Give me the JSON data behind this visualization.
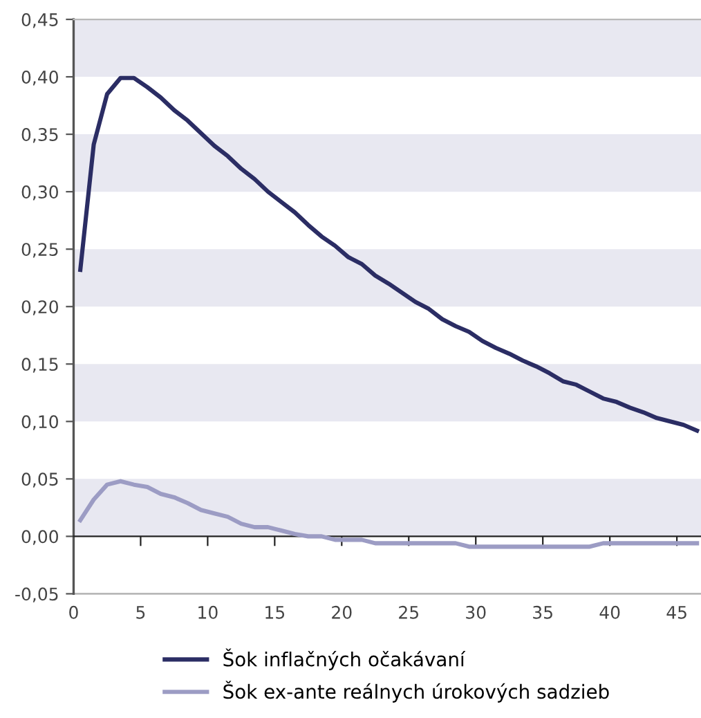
{
  "chart_data": {
    "type": "line",
    "x": [
      0.5,
      1.5,
      2.5,
      3.5,
      4.5,
      5.5,
      6.5,
      7.5,
      8.5,
      9.5,
      10.5,
      11.5,
      12.5,
      13.5,
      14.5,
      15.5,
      16.5,
      17.5,
      18.5,
      19.5,
      20.5,
      21.5,
      22.5,
      23.5,
      24.5,
      25.5,
      26.5,
      27.5,
      28.5,
      29.5,
      30.5,
      31.5,
      32.5,
      33.5,
      34.5,
      35.5,
      36.5,
      37.5,
      38.5,
      39.5,
      40.5,
      41.5,
      42.5,
      43.5,
      44.5,
      45.5,
      46.5
    ],
    "series": [
      {
        "name": "Šok inflačných očakávaní",
        "color": "#2b2d64",
        "values": [
          0.232,
          0.341,
          0.385,
          0.399,
          0.399,
          0.391,
          0.382,
          0.371,
          0.362,
          0.351,
          0.34,
          0.331,
          0.32,
          0.311,
          0.3,
          0.291,
          0.282,
          0.271,
          0.261,
          0.253,
          0.243,
          0.237,
          0.227,
          0.22,
          0.212,
          0.204,
          0.198,
          0.189,
          0.183,
          0.178,
          0.17,
          0.164,
          0.159,
          0.153,
          0.148,
          0.142,
          0.135,
          0.132,
          0.126,
          0.12,
          0.117,
          0.112,
          0.108,
          0.103,
          0.1,
          0.097,
          0.092
        ]
      },
      {
        "name": "Šok ex-ante reálnych úrokových sadzieb",
        "color": "#9c9cc4",
        "values": [
          0.014,
          0.032,
          0.045,
          0.048,
          0.045,
          0.043,
          0.037,
          0.034,
          0.029,
          0.023,
          0.02,
          0.017,
          0.011,
          0.008,
          0.008,
          0.005,
          0.002,
          0.0,
          0.0,
          -0.003,
          -0.003,
          -0.003,
          -0.006,
          -0.006,
          -0.006,
          -0.006,
          -0.006,
          -0.006,
          -0.006,
          -0.009,
          -0.009,
          -0.009,
          -0.009,
          -0.009,
          -0.009,
          -0.009,
          -0.009,
          -0.009,
          -0.009,
          -0.006,
          -0.006,
          -0.006,
          -0.006,
          -0.006,
          -0.006,
          -0.006,
          -0.006
        ]
      }
    ],
    "xlim": [
      0,
      46.8
    ],
    "xticks": [
      0,
      5,
      10,
      15,
      20,
      25,
      30,
      35,
      40,
      45
    ],
    "ylim": [
      -0.05,
      0.45
    ],
    "yticks": [
      {
        "value": -0.05,
        "label": "-0,05"
      },
      {
        "value": 0.0,
        "label": "0,00"
      },
      {
        "value": 0.05,
        "label": "0,05"
      },
      {
        "value": 0.1,
        "label": "0,10"
      },
      {
        "value": 0.15,
        "label": "0,15"
      },
      {
        "value": 0.2,
        "label": "0,20"
      },
      {
        "value": 0.25,
        "label": "0,25"
      },
      {
        "value": 0.3,
        "label": "0,30"
      },
      {
        "value": 0.35,
        "label": "0,35"
      },
      {
        "value": 0.4,
        "label": "0,40"
      },
      {
        "value": 0.45,
        "label": "0,45"
      }
    ],
    "bands": [
      {
        "axis": "y",
        "from": 0.4,
        "to": 0.45,
        "color": "#e8e8f1"
      },
      {
        "axis": "y",
        "from": 0.3,
        "to": 0.35,
        "color": "#e8e8f1"
      },
      {
        "axis": "y",
        "from": 0.2,
        "to": 0.25,
        "color": "#e8e8f1"
      },
      {
        "axis": "y",
        "from": 0.1,
        "to": 0.15,
        "color": "#e8e8f1"
      },
      {
        "axis": "y",
        "from": 0.0,
        "to": 0.05,
        "color": "#e8e8f1"
      }
    ],
    "legend": "bottom",
    "marker": "none",
    "line_style": "solid"
  }
}
